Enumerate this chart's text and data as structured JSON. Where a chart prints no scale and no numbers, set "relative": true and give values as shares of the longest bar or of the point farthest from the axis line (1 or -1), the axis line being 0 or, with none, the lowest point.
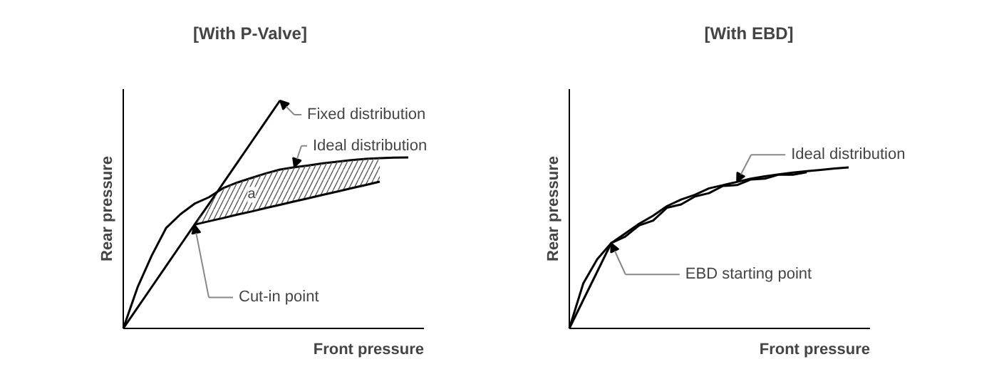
{
  "chart_data": [
    {
      "type": "line",
      "title": "[With P-Valve]",
      "xlabel": "Front pressure",
      "ylabel": "Rear pressure",
      "relative": true,
      "line_style": "solid",
      "categories": [
        null,
        null,
        null,
        null,
        null,
        null,
        null,
        null,
        null,
        null,
        null,
        null,
        null,
        null,
        null,
        null,
        null,
        null,
        null,
        null,
        null
      ],
      "series": [
        {
          "color": "#000000",
          "values": [
            0,
            0.091,
            0.182,
            0.273,
            0.364,
            0.455,
            0.545,
            0.636,
            0.727,
            0.818,
            0.909,
            1,
            null,
            null,
            null,
            null,
            null,
            null,
            null,
            null,
            null
          ]
        },
        {
          "color": "#000000",
          "values": [
            0,
            0.18,
            0.32,
            0.44,
            0.5,
            0.547,
            0.575,
            0.615,
            0.64,
            0.66,
            0.68,
            0.697,
            0.707,
            0.715,
            0.724,
            0.731,
            0.738,
            0.744,
            0.747,
            0.749,
            0.75
          ]
        },
        {
          "color": "#000000",
          "values": [
            null,
            null,
            null,
            null,
            null,
            0.455,
            0.47,
            0.484,
            0.499,
            0.513,
            0.528,
            0.542,
            0.557,
            0.571,
            0.586,
            0.6,
            0.615,
            0.629,
            0.644,
            null,
            null
          ],
          "lower": [
            null,
            null,
            null,
            null,
            null,
            0.455,
            0.47,
            0.484,
            0.499,
            0.513,
            0.528,
            0.542,
            0.557,
            0.571,
            0.586,
            0.6,
            0.615,
            0.629,
            0.644,
            null,
            null
          ],
          "upper": [
            null,
            null,
            null,
            null,
            null,
            0.455,
            0.545,
            0.615,
            0.64,
            0.66,
            0.68,
            0.697,
            0.707,
            0.715,
            0.724,
            0.731,
            0.738,
            0.744,
            0.747,
            null,
            null
          ]
        }
      ],
      "annotations": [
        "Fixed distribution",
        "Ideal distribution",
        "Cut-in point",
        "a"
      ]
    },
    {
      "type": "line",
      "title": "[With EBD]",
      "xlabel": "Front pressure",
      "ylabel": "Rear pressure",
      "relative": true,
      "line_style": "solid",
      "categories": [
        null,
        null,
        null,
        null,
        null,
        null,
        null,
        null,
        null,
        null,
        null,
        null,
        null,
        null,
        null,
        null,
        null,
        null,
        null,
        null,
        null
      ],
      "series": [
        {
          "color": "#000000",
          "values": [
            0,
            0.28,
            0.43,
            0.53,
            0.59,
            0.65,
            0.7,
            0.76,
            0.8,
            0.83,
            0.87,
            0.89,
            0.91,
            0.93,
            0.945,
            0.957,
            0.968,
            0.977,
            0.985,
            0.993,
            1
          ]
        },
        {
          "color": "#000000",
          "values": [
            0,
            0.177,
            0.353,
            0.53,
            0.57,
            0.64,
            0.67,
            0.75,
            0.77,
            0.82,
            0.84,
            0.885,
            0.89,
            0.925,
            0.93,
            0.955,
            0.955,
            0.97,
            null,
            null,
            null
          ]
        }
      ],
      "annotations": [
        "Ideal distribution",
        "EBD starting point"
      ]
    }
  ]
}
